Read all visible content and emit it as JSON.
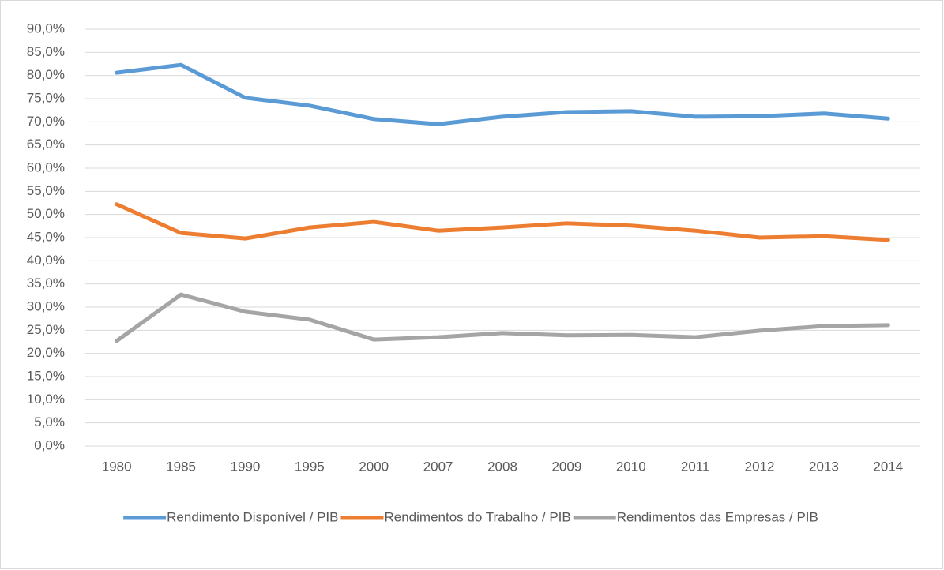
{
  "chart_data": {
    "type": "line",
    "categories": [
      "1980",
      "1985",
      "1990",
      "1995",
      "2000",
      "2007",
      "2008",
      "2009",
      "2010",
      "2011",
      "2012",
      "2013",
      "2014"
    ],
    "series": [
      {
        "name": "Rendimento Disponível / PIB",
        "color": "#5b9bd5",
        "values": [
          80.6,
          82.3,
          75.2,
          73.5,
          70.6,
          69.5,
          71.1,
          72.1,
          72.3,
          71.1,
          71.2,
          71.8,
          70.7
        ]
      },
      {
        "name": "Rendimentos do Trabalho / PIB",
        "color": "#ed7d31",
        "values": [
          52.2,
          46.0,
          44.8,
          47.2,
          48.4,
          46.5,
          47.2,
          48.1,
          47.6,
          46.5,
          45.0,
          45.3,
          44.5
        ]
      },
      {
        "name": "Rendimentos das Empresas / PIB",
        "color": "#a5a5a5",
        "values": [
          22.7,
          32.7,
          29.0,
          27.3,
          23.0,
          23.5,
          24.4,
          23.9,
          24.0,
          23.5,
          24.9,
          25.9,
          26.1
        ]
      }
    ],
    "ylim": [
      0,
      90
    ],
    "yticks": [
      {
        "value": 0,
        "label": "0,0%"
      },
      {
        "value": 5,
        "label": "5,0%"
      },
      {
        "value": 10,
        "label": "10,0%"
      },
      {
        "value": 15,
        "label": "15,0%"
      },
      {
        "value": 20,
        "label": "20,0%"
      },
      {
        "value": 25,
        "label": "25,0%"
      },
      {
        "value": 30,
        "label": "30,0%"
      },
      {
        "value": 35,
        "label": "35,0%"
      },
      {
        "value": 40,
        "label": "40,0%"
      },
      {
        "value": 45,
        "label": "45,0%"
      },
      {
        "value": 50,
        "label": "50,0%"
      },
      {
        "value": 55,
        "label": "55,0%"
      },
      {
        "value": 60,
        "label": "60,0%"
      },
      {
        "value": 65,
        "label": "65,0%"
      },
      {
        "value": 70,
        "label": "70,0%"
      },
      {
        "value": 75,
        "label": "75,0%"
      },
      {
        "value": 80,
        "label": "80,0%"
      },
      {
        "value": 85,
        "label": "85,0%"
      },
      {
        "value": 90,
        "label": "90,0%"
      }
    ],
    "grid": true,
    "legend": "bottom"
  }
}
